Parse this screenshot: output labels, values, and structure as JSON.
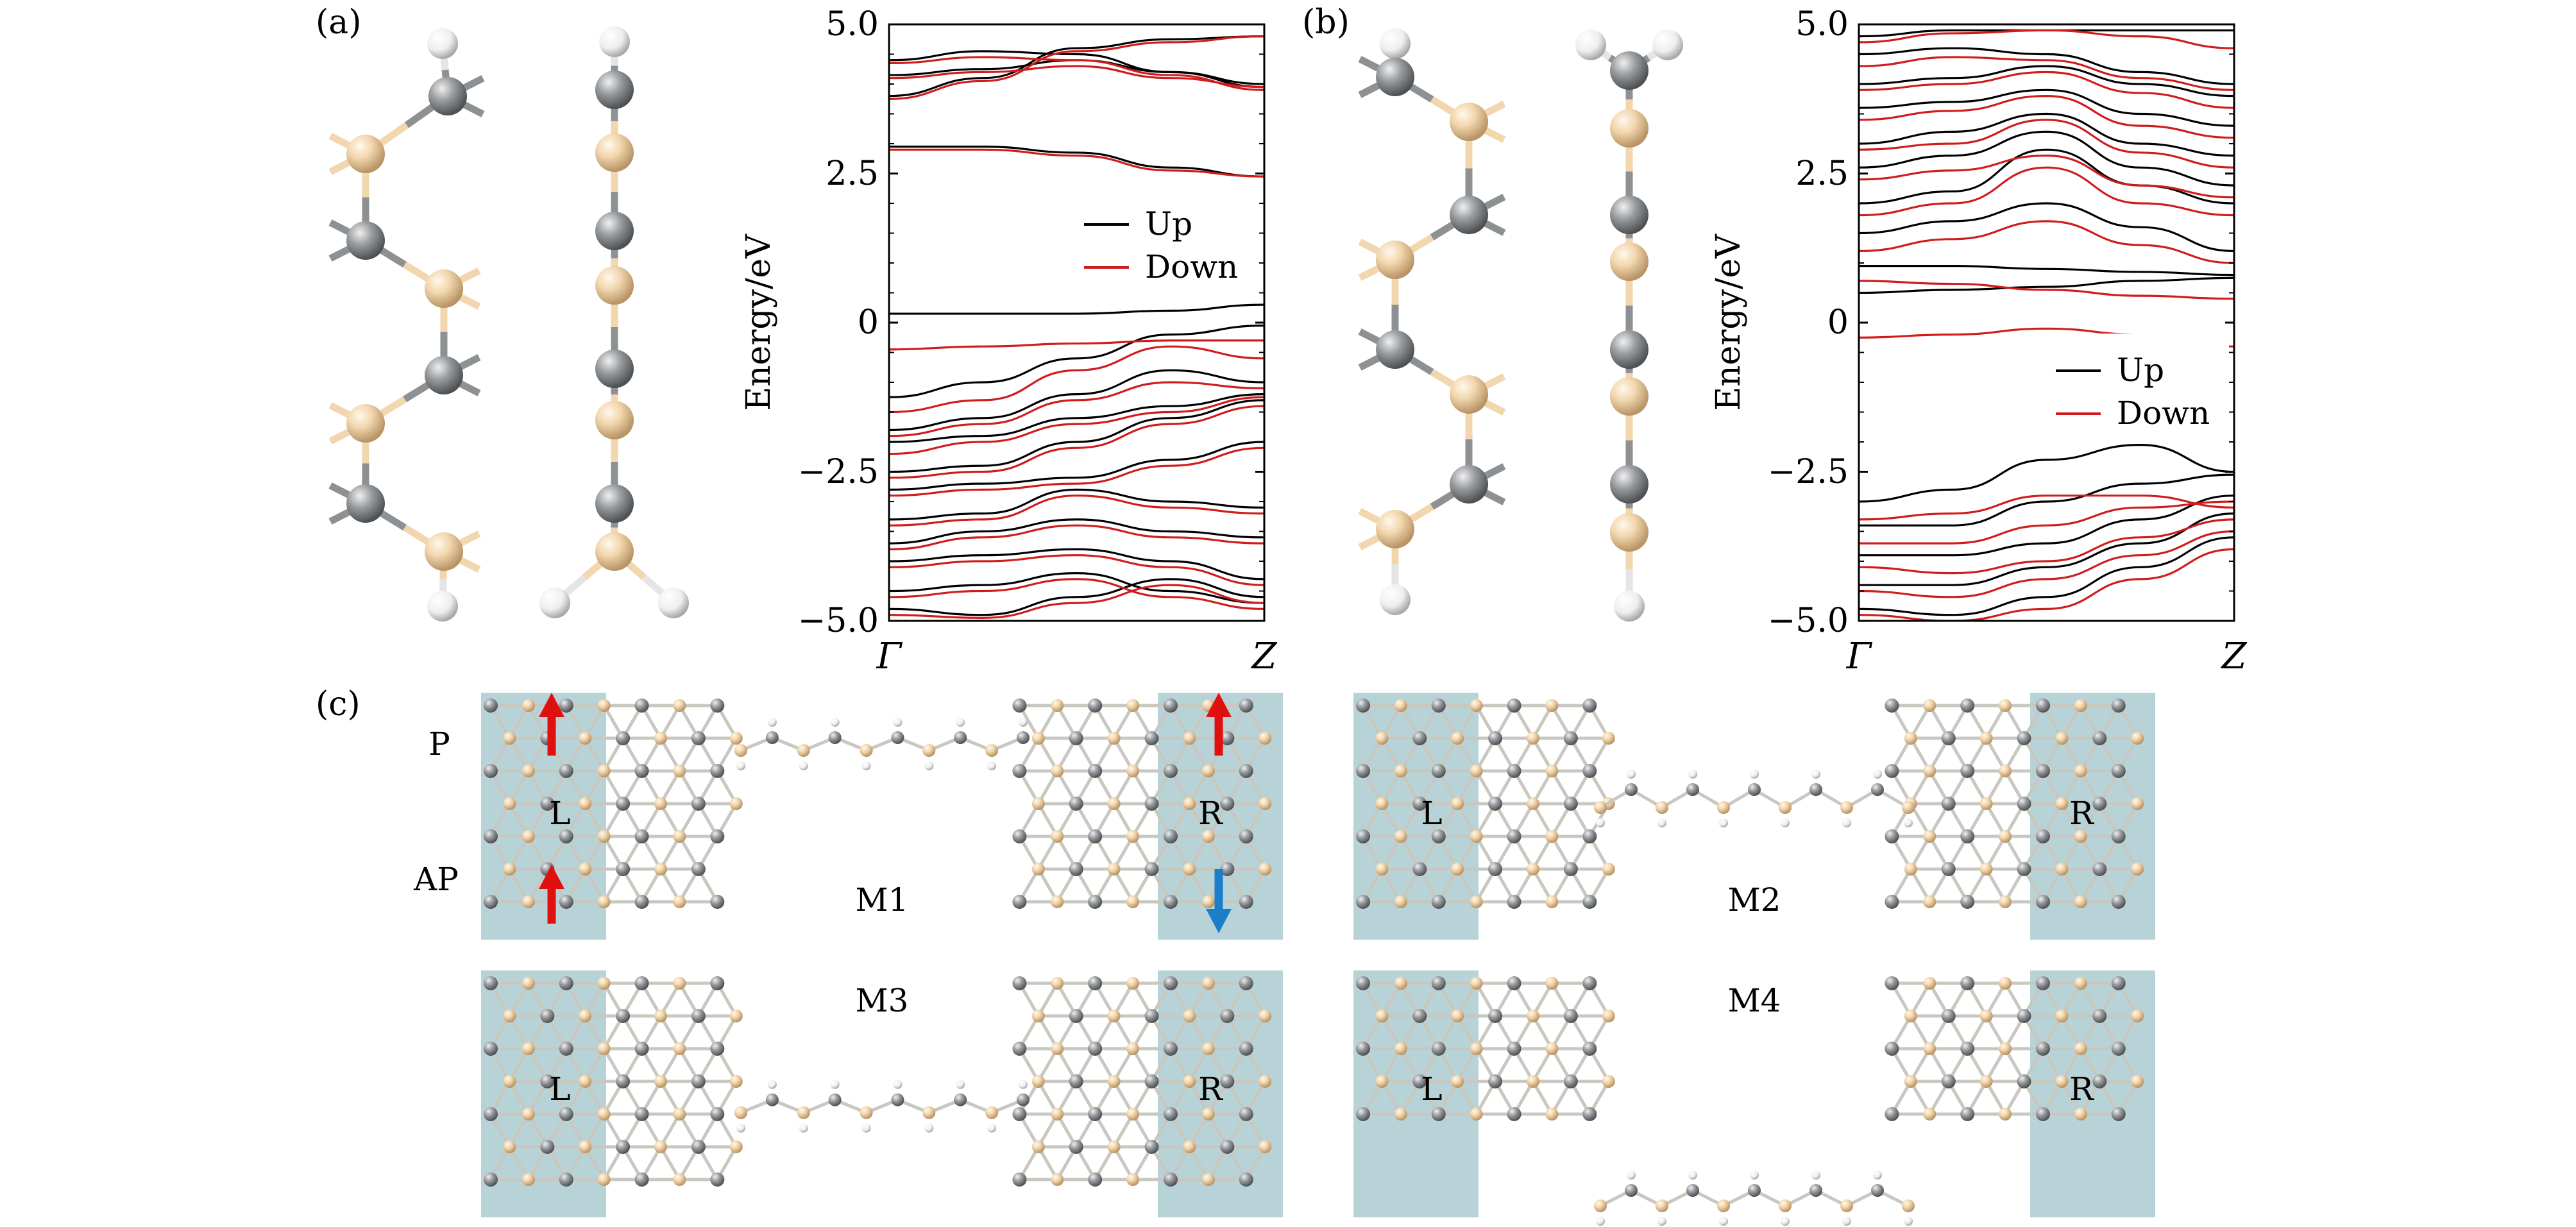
{
  "panels": {
    "a": "(a)",
    "b": "(b)",
    "c": "(c)"
  },
  "chart_data": [
    {
      "type": "line",
      "panel": "(a)",
      "xlabel": "",
      "ylabel": "Energy/eV",
      "xticks": [
        "Γ",
        "Z"
      ],
      "ylim": [
        -5.0,
        5.0
      ],
      "yticks": [
        "5.0",
        "2.5",
        "0",
        "−2.5",
        "−5.0"
      ],
      "legend": {
        "placement": "center-right",
        "entries": [
          "Up",
          "Down"
        ]
      },
      "colors": {
        "Up": "#000000",
        "Down": "#d01c1c"
      },
      "x": [
        0,
        0.25,
        0.5,
        0.75,
        1.0
      ],
      "series": [
        {
          "name": "Up",
          "bands": [
            [
              4.15,
              4.25,
              4.4,
              4.2,
              4.0
            ],
            [
              4.4,
              4.55,
              4.5,
              4.2,
              3.95
            ],
            [
              3.8,
              4.1,
              4.6,
              4.75,
              4.8
            ],
            [
              2.95,
              2.95,
              2.85,
              2.6,
              2.45
            ],
            [
              0.15,
              0.15,
              0.15,
              0.2,
              0.3
            ],
            [
              -1.25,
              -1.0,
              -0.6,
              -0.2,
              -0.05
            ],
            [
              -1.8,
              -1.6,
              -1.2,
              -0.8,
              -1.0
            ],
            [
              -2.0,
              -1.9,
              -1.6,
              -1.4,
              -1.2
            ],
            [
              -2.5,
              -2.4,
              -2.0,
              -1.6,
              -1.3
            ],
            [
              -2.8,
              -2.7,
              -2.6,
              -2.3,
              -2.0
            ],
            [
              -3.3,
              -3.2,
              -2.8,
              -3.0,
              -3.1
            ],
            [
              -3.7,
              -3.5,
              -3.3,
              -3.5,
              -3.6
            ],
            [
              -4.0,
              -3.9,
              -3.8,
              -4.0,
              -4.3
            ],
            [
              -4.5,
              -4.4,
              -4.2,
              -4.5,
              -4.7
            ],
            [
              -4.8,
              -4.9,
              -4.6,
              -4.3,
              -4.6
            ]
          ]
        },
        {
          "name": "Down",
          "bands": [
            [
              4.1,
              4.2,
              4.3,
              4.1,
              3.95
            ],
            [
              4.35,
              4.45,
              4.4,
              4.15,
              3.9
            ],
            [
              3.75,
              4.05,
              4.55,
              4.7,
              4.8
            ],
            [
              2.9,
              2.9,
              2.8,
              2.55,
              2.45
            ],
            [
              -0.45,
              -0.4,
              -0.35,
              -0.3,
              -0.3
            ],
            [
              -1.5,
              -1.3,
              -0.8,
              -0.4,
              -0.6
            ],
            [
              -1.9,
              -1.7,
              -1.3,
              -1.0,
              -1.1
            ],
            [
              -2.2,
              -2.0,
              -1.7,
              -1.5,
              -1.25
            ],
            [
              -2.6,
              -2.5,
              -2.1,
              -1.7,
              -1.4
            ],
            [
              -2.9,
              -2.8,
              -2.7,
              -2.4,
              -2.1
            ],
            [
              -3.4,
              -3.3,
              -2.9,
              -3.1,
              -3.2
            ],
            [
              -3.8,
              -3.6,
              -3.4,
              -3.6,
              -3.7
            ],
            [
              -4.1,
              -4.0,
              -3.9,
              -4.1,
              -4.4
            ],
            [
              -4.6,
              -4.5,
              -4.3,
              -4.6,
              -4.8
            ],
            [
              -4.9,
              -4.95,
              -4.7,
              -4.4,
              -4.7
            ]
          ]
        }
      ]
    },
    {
      "type": "line",
      "panel": "(b)",
      "xlabel": "",
      "ylabel": "Energy/eV",
      "xticks": [
        "Γ",
        "Z"
      ],
      "ylim": [
        -5.0,
        5.0
      ],
      "yticks": [
        "5.0",
        "2.5",
        "0",
        "−2.5",
        "−5.0"
      ],
      "legend": {
        "placement": "lower-right",
        "entries": [
          "Up",
          "Down"
        ]
      },
      "colors": {
        "Up": "#000000",
        "Down": "#d01c1c"
      },
      "x": [
        0,
        0.25,
        0.5,
        0.75,
        1.0
      ],
      "series": [
        {
          "name": "Up",
          "bands": [
            [
              4.8,
              4.9,
              4.9,
              4.9,
              4.9
            ],
            [
              4.5,
              4.6,
              4.5,
              4.2,
              4.0
            ],
            [
              4.0,
              4.1,
              4.3,
              4.0,
              3.8
            ],
            [
              3.6,
              3.7,
              3.9,
              3.5,
              3.3
            ],
            [
              3.0,
              3.2,
              3.5,
              3.0,
              2.8
            ],
            [
              2.6,
              2.8,
              3.2,
              2.6,
              2.3
            ],
            [
              2.0,
              2.2,
              2.9,
              2.3,
              2.0
            ],
            [
              1.5,
              1.7,
              2.0,
              1.6,
              1.2
            ],
            [
              0.95,
              0.95,
              0.9,
              0.85,
              0.8
            ],
            [
              0.5,
              0.55,
              0.6,
              0.7,
              0.75
            ],
            [
              -3.0,
              -2.8,
              -2.3,
              -2.05,
              -2.5
            ],
            [
              -3.4,
              -3.4,
              -3.0,
              -2.7,
              -2.55
            ],
            [
              -3.9,
              -3.9,
              -3.7,
              -3.3,
              -2.9
            ],
            [
              -4.4,
              -4.4,
              -4.1,
              -3.7,
              -3.2
            ],
            [
              -4.8,
              -4.9,
              -4.6,
              -4.1,
              -3.6
            ]
          ]
        },
        {
          "name": "Down",
          "bands": [
            [
              4.7,
              4.85,
              4.9,
              4.8,
              4.6
            ],
            [
              4.3,
              4.45,
              4.4,
              4.1,
              3.9
            ],
            [
              3.9,
              4.0,
              4.2,
              3.85,
              3.6
            ],
            [
              3.4,
              3.55,
              3.8,
              3.3,
              3.1
            ],
            [
              2.9,
              3.0,
              3.4,
              2.85,
              2.6
            ],
            [
              2.4,
              2.55,
              2.8,
              2.3,
              2.1
            ],
            [
              1.8,
              2.0,
              2.6,
              2.0,
              1.8
            ],
            [
              1.2,
              1.4,
              1.7,
              1.3,
              1.0
            ],
            [
              0.7,
              0.65,
              0.55,
              0.45,
              0.4
            ],
            [
              -0.25,
              -0.2,
              -0.1,
              -0.2,
              -0.4
            ],
            [
              -3.3,
              -3.2,
              -2.9,
              -2.9,
              -3.1
            ],
            [
              -3.7,
              -3.7,
              -3.4,
              -3.1,
              -3.0
            ],
            [
              -4.1,
              -4.2,
              -4.0,
              -3.6,
              -3.3
            ],
            [
              -4.5,
              -4.6,
              -4.3,
              -3.9,
              -3.5
            ],
            [
              -4.9,
              -5.0,
              -4.8,
              -4.3,
              -3.8
            ]
          ]
        }
      ]
    }
  ],
  "panel_c": {
    "row_labels": [
      "P",
      "AP"
    ],
    "lead_left": "L",
    "lead_right": "R",
    "devices": [
      "M1",
      "M2",
      "M3",
      "M4"
    ],
    "colors": {
      "lead": "#5f9ea8",
      "carbon": "#8e9193",
      "boron_nitrogen": "#f2d6ad",
      "hydrogen": "#f4f4f4",
      "up_arrow": "#e01010",
      "down_arrow": "#1a7ec9"
    }
  }
}
